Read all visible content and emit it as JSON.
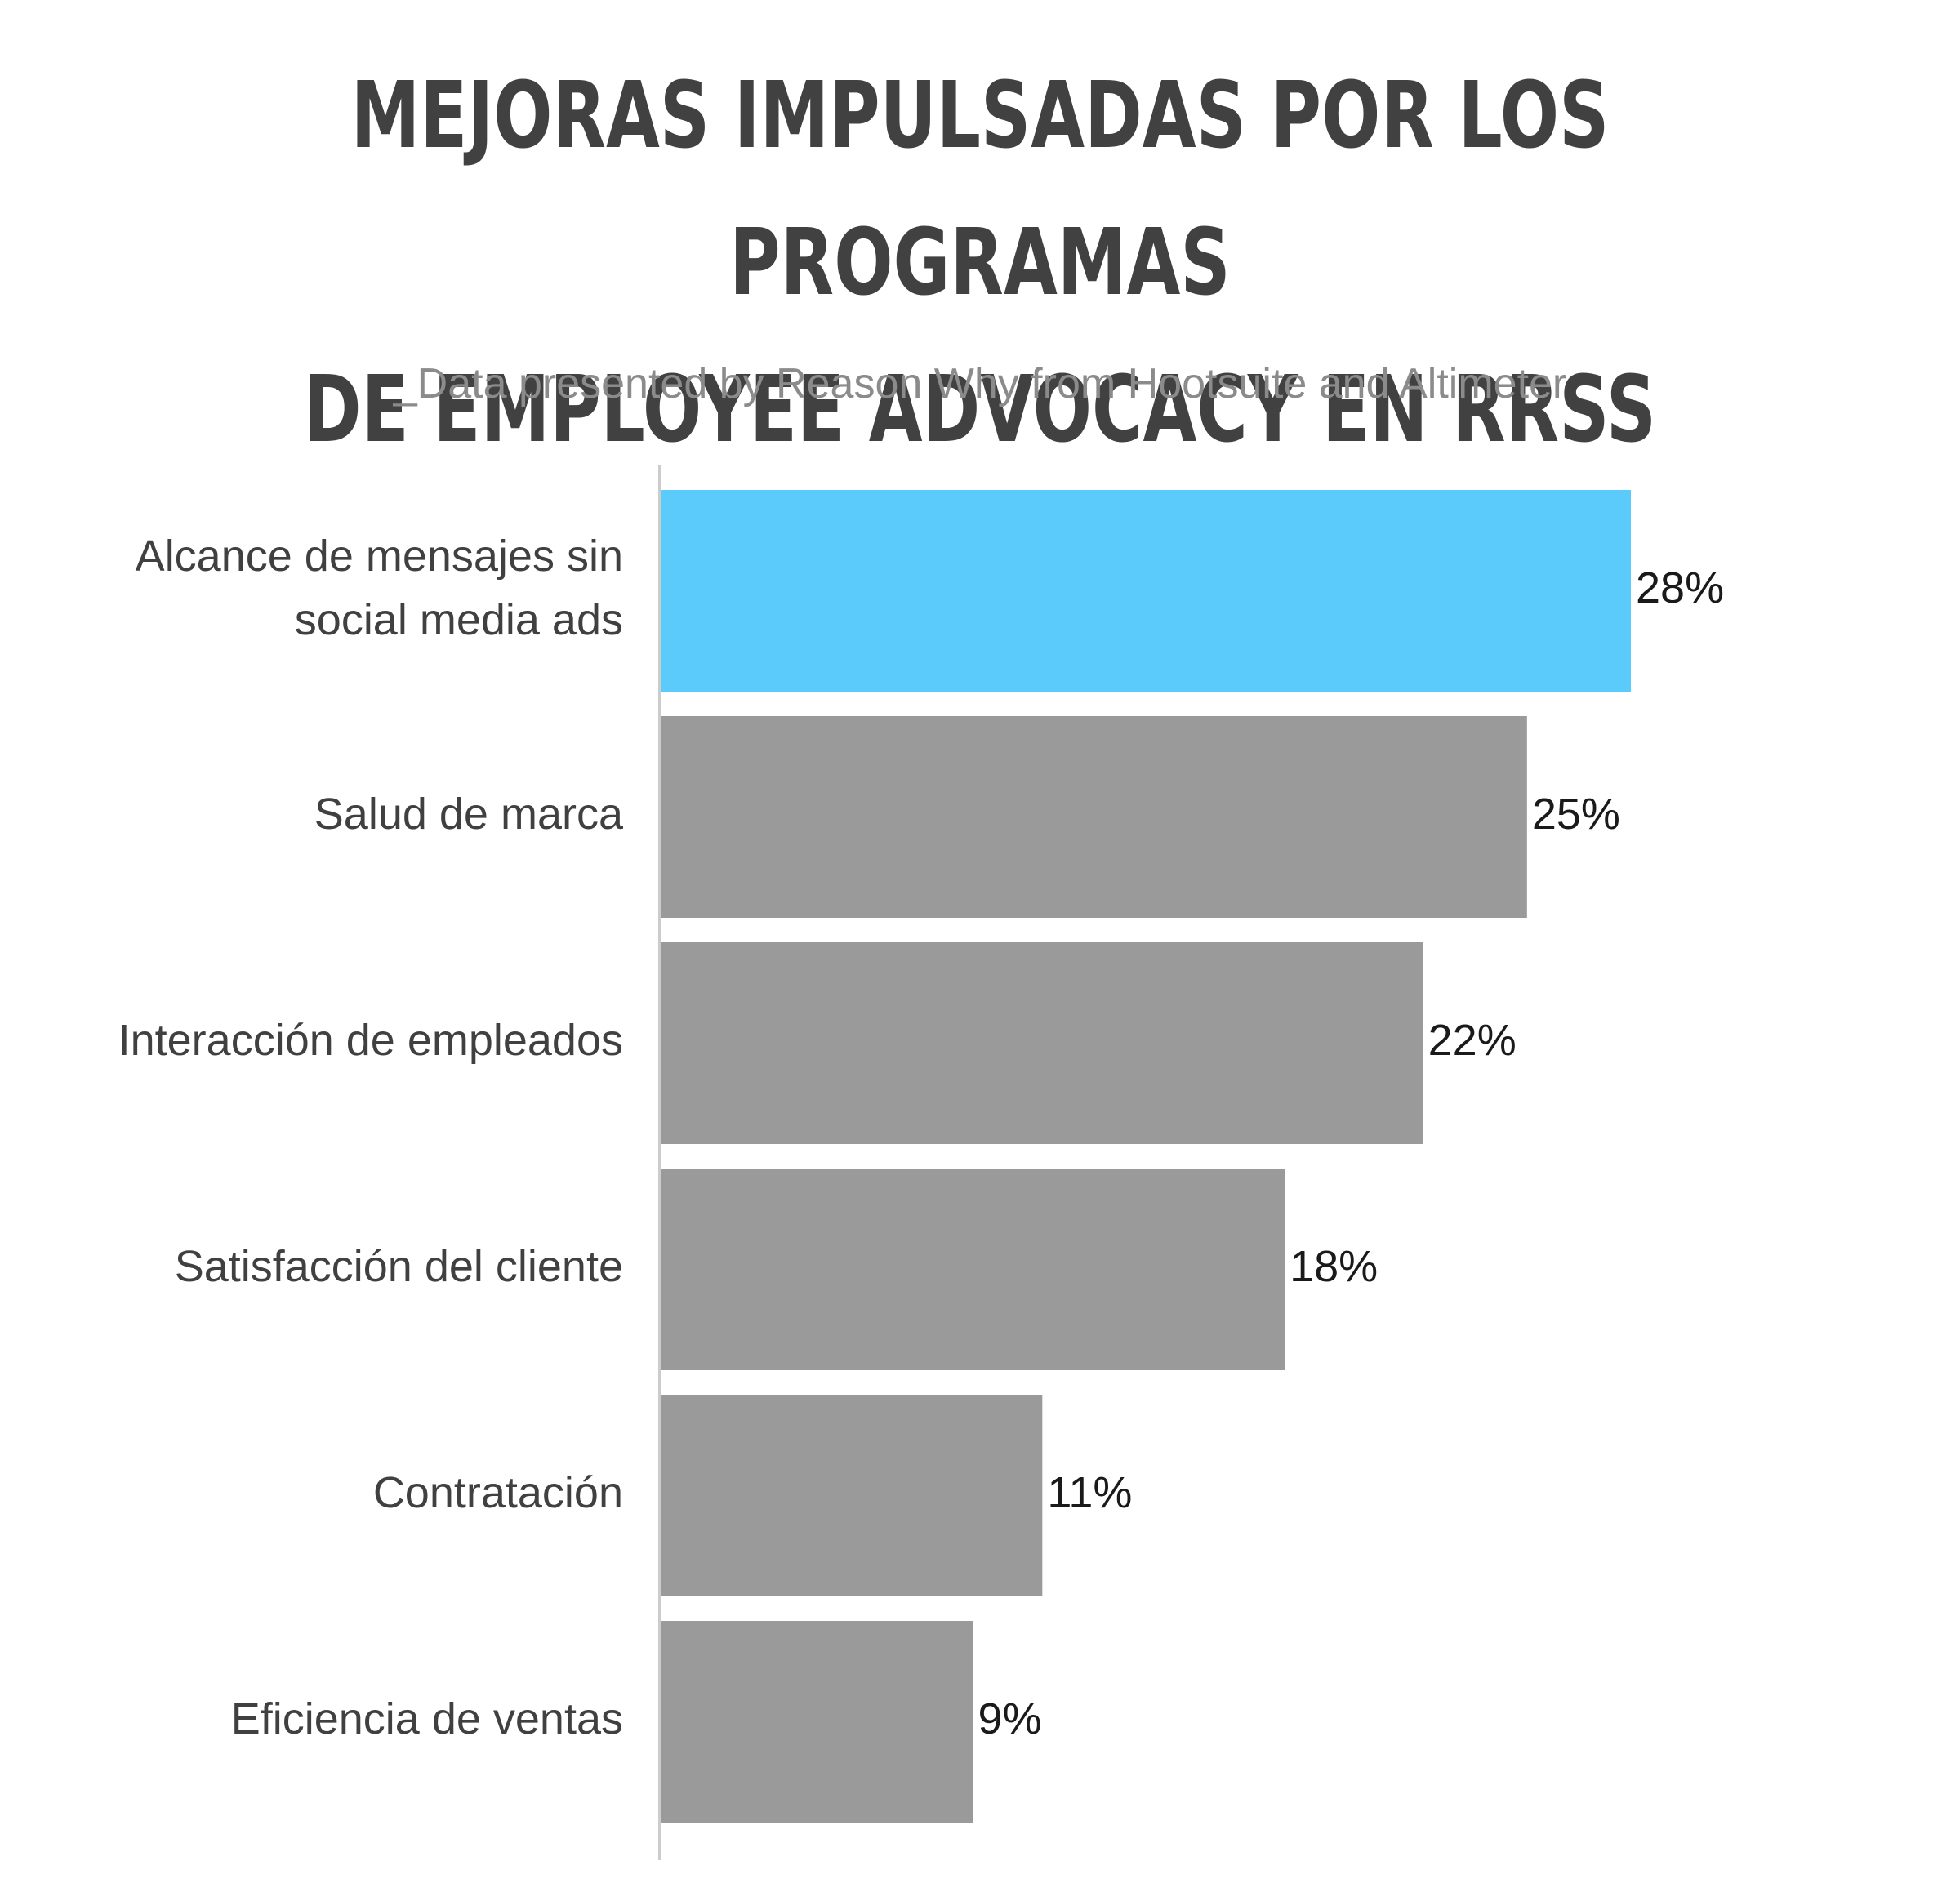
{
  "title_lines": [
    "MEJORAS IMPULSADAS POR LOS PROGRAMAS",
    "DE EMPLOYEE ADVOCACY EN RRSS"
  ],
  "subtitle": "_Data presented by Reason Why from Hootsuite and Altimeter",
  "chart_data": {
    "type": "bar",
    "orientation": "horizontal",
    "categories": [
      [
        "Alcance de mensajes sin",
        "social media ads"
      ],
      [
        "Salud de marca"
      ],
      [
        "Interacción de empleados"
      ],
      [
        "Satisfacción del cliente"
      ],
      [
        "Contratación"
      ],
      [
        "Eficiencia de ventas"
      ]
    ],
    "values": [
      28,
      25,
      22,
      18,
      11,
      9
    ],
    "value_labels": [
      "28%",
      "25%",
      "22%",
      "18%",
      "11%",
      "9%"
    ],
    "highlight_index": 0,
    "colors": {
      "highlight": "#5bcbfc",
      "default": "#9a9a9a",
      "axis": "#cccccc"
    },
    "xlim": [
      0,
      28
    ],
    "grid": false,
    "legend": "none"
  }
}
